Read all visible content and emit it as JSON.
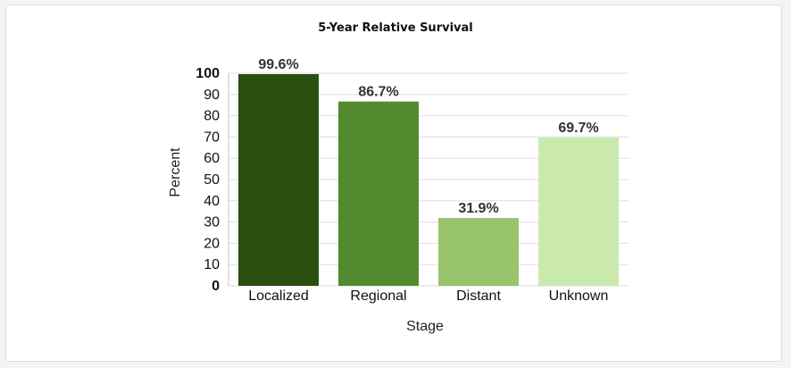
{
  "chart_data": {
    "type": "bar",
    "title": "5-Year Relative Survival",
    "xlabel": "Stage",
    "ylabel": "Percent",
    "categories": [
      "Localized",
      "Regional",
      "Distant",
      "Unknown"
    ],
    "values": [
      99.6,
      86.7,
      31.9,
      69.7
    ],
    "data_labels": [
      "99.6%",
      "86.7%",
      "31.9%",
      "69.7%"
    ],
    "colors": [
      "#2a4f10",
      "#548a2f",
      "#98c46b",
      "#caeaad"
    ],
    "ylim": [
      0,
      100
    ],
    "yticks": [
      0,
      10,
      20,
      30,
      40,
      50,
      60,
      70,
      80,
      90,
      100
    ],
    "grid": true,
    "legend": "none"
  }
}
